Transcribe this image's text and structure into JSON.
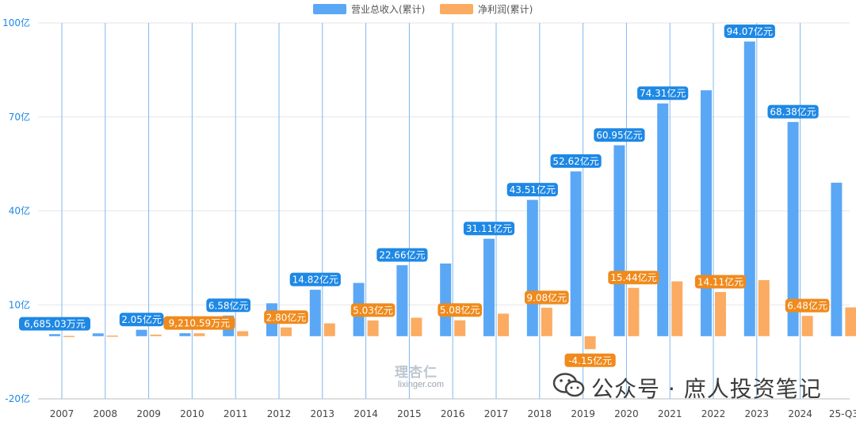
{
  "chart_data": {
    "type": "bar",
    "categories": [
      "2007",
      "2008",
      "2009",
      "2010",
      "2011",
      "2012",
      "2013",
      "2014",
      "2015",
      "2016",
      "2017",
      "2018",
      "2019",
      "2020",
      "2021",
      "2022",
      "2023",
      "2024",
      "25-Q3"
    ],
    "series": [
      {
        "name": "营业总收入(累计)",
        "color": "#5aa7f5",
        "label_color": "#1e88e5",
        "values": [
          0.6685,
          0.9,
          2.05,
          0.95,
          6.58,
          10.5,
          14.82,
          17.0,
          22.66,
          23.2,
          31.11,
          43.51,
          52.62,
          60.95,
          74.31,
          78.5,
          94.07,
          68.38,
          49.0
        ],
        "labels": [
          "6,685.03万元",
          null,
          "2.05亿元",
          null,
          "6.58亿元",
          null,
          "14.82亿元",
          null,
          "22.66亿元",
          null,
          "31.11亿元",
          "43.51亿元",
          "52.62亿元",
          "60.95亿元",
          "74.31亿元",
          null,
          "94.07亿元",
          "68.38亿元",
          null
        ]
      },
      {
        "name": "净利润(累计)",
        "color": "#fbac62",
        "label_color": "#f08a1c",
        "values": [
          0.1,
          0.2,
          0.5,
          0.9211,
          1.6,
          2.8,
          4.1,
          5.03,
          5.9,
          5.08,
          7.2,
          9.08,
          -4.15,
          15.44,
          17.5,
          14.11,
          17.9,
          6.48,
          9.2
        ],
        "labels": [
          null,
          null,
          null,
          "9,210.59万元",
          null,
          "2.80亿元",
          null,
          "5.03亿元",
          null,
          "5.08亿元",
          null,
          "9.08亿元",
          "-4.15亿元",
          "15.44亿元",
          null,
          "14.11亿元",
          null,
          "6.48亿元",
          null
        ]
      }
    ],
    "y_ticks": [
      {
        "value": 100,
        "label": "100亿"
      },
      {
        "value": 70,
        "label": "70亿"
      },
      {
        "value": 40,
        "label": "40亿"
      },
      {
        "value": 10,
        "label": "10亿"
      },
      {
        "value": -20,
        "label": "-20亿"
      }
    ],
    "ylim": [
      -20,
      100
    ],
    "title": "",
    "xlabel": "",
    "ylabel": "",
    "legend_position": "top-center",
    "grid": true
  },
  "watermark": {
    "logo": "理杏仁",
    "url": "lixinger.com",
    "wechat_text": "公众号 · 庶人投资笔记"
  }
}
